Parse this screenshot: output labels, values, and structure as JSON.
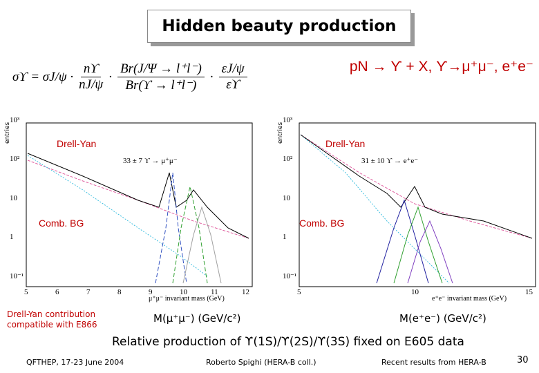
{
  "title": "Hidden beauty production",
  "reaction": "pN → ϒ + X, ϒ→μ⁺μ⁻, e⁺e⁻",
  "formula": {
    "lhs": "σϒ = σJ/ψ ·",
    "f1_num": "nϒ",
    "f1_den": "nJ/ψ",
    "f2_num": "Br(J/Ψ → l⁺l⁻)",
    "f2_den": "Br(ϒ → l⁺l⁻)",
    "f3_num": "εJ/ψ",
    "f3_den": "εϒ"
  },
  "plots": [
    {
      "ylabel": "entries",
      "annotation": "33 ± 7  ϒ → μ⁺μ⁻",
      "drell_yan": "Drell-Yan",
      "comb_bg": "Comb. BG",
      "xlabel": "μ⁺μ⁻ invariant mass (GeV)",
      "xticks": [
        "5",
        "6",
        "7",
        "8",
        "9",
        "10",
        "11",
        "12"
      ],
      "yticks": [
        "10³",
        "10²",
        "10",
        "1",
        "10⁻¹"
      ],
      "mass_label": "M(μ⁺μ⁻)  (GeV/c²)"
    },
    {
      "ylabel": "entries",
      "annotation": "31 ± 10  ϒ → e⁺e⁻",
      "drell_yan": "Drell-Yan",
      "comb_bg": "Comb. BG",
      "xlabel": "e⁺e⁻ invariant mass (GeV)",
      "xticks": [
        "5",
        "10",
        "15"
      ],
      "yticks": [
        "10³",
        "10²",
        "10",
        "1",
        "10⁻¹"
      ],
      "mass_label": "M(e⁺e⁻)  (GeV/c²)"
    }
  ],
  "note": "Drell-Yan contribution compatible with E866",
  "conclusion": "Relative production of ϒ(1S)/ϒ(2S)/ϒ(3S) fixed on E605 data",
  "footer": {
    "conference": "QFTHEP, 17-23 June 2004",
    "author": "Roberto Spighi (HERA-B coll.)",
    "topic": "Recent results from HERA-B",
    "page": "30"
  }
}
